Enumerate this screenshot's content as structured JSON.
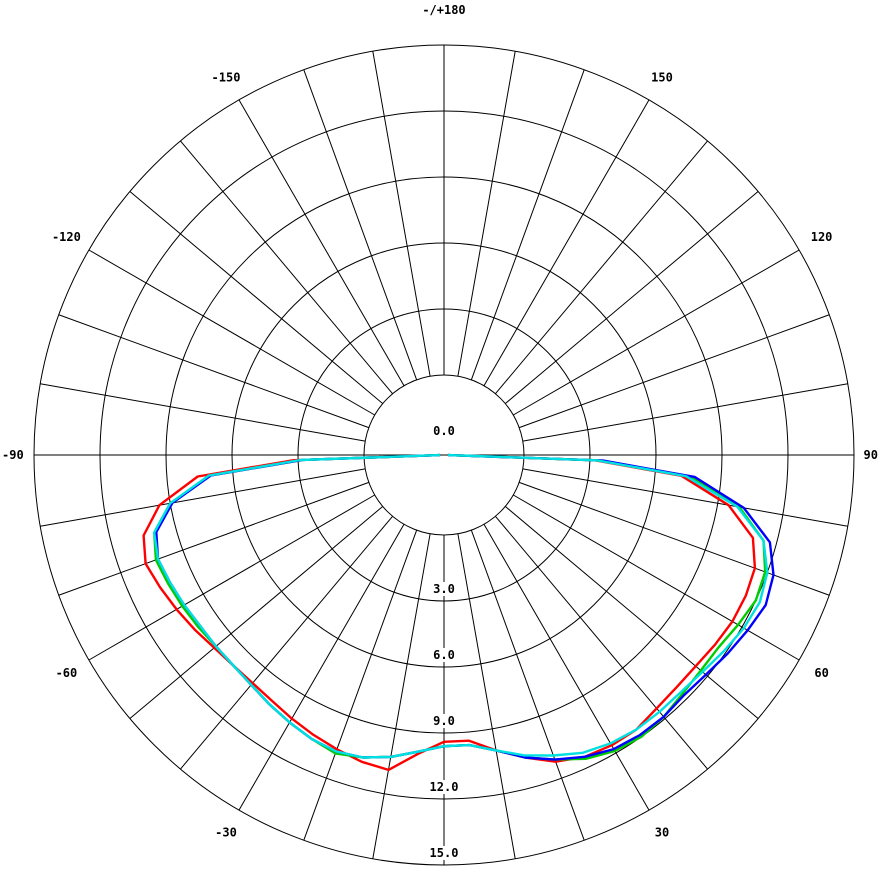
{
  "chart_data": {
    "type": "polar-line",
    "title": "",
    "angle_labels": [
      {
        "angle": 180,
        "text": "-/+180"
      },
      {
        "angle": 150,
        "text": "150"
      },
      {
        "angle": 120,
        "text": "120"
      },
      {
        "angle": 90,
        "text": "90"
      },
      {
        "angle": 60,
        "text": "60"
      },
      {
        "angle": 30,
        "text": "30"
      },
      {
        "angle": -30,
        "text": "-30"
      },
      {
        "angle": -60,
        "text": "-60"
      },
      {
        "angle": -90,
        "text": "-90"
      },
      {
        "angle": -120,
        "text": "-120"
      },
      {
        "angle": -150,
        "text": "-150"
      }
    ],
    "radial_labels": [
      "0.0",
      "3.0",
      "6.0",
      "9.0",
      "12.0",
      "15.0"
    ],
    "radial_range": [
      0,
      15
    ],
    "ring_values": [
      3,
      6,
      9,
      12,
      15
    ],
    "spoke_step_deg": 10,
    "series": [
      {
        "color": "#ff0000",
        "points": [
          [
            -88,
            3.2
          ],
          [
            -85,
            7.6
          ],
          [
            -80,
            9.5
          ],
          [
            -75,
            10.5
          ],
          [
            -70,
            10.8
          ],
          [
            -65,
            10.6
          ],
          [
            -60,
            10.4
          ],
          [
            -55,
            10.2
          ],
          [
            -50,
            10.0
          ],
          [
            -45,
            9.9
          ],
          [
            -40,
            9.9
          ],
          [
            -35,
            10.0
          ],
          [
            -30,
            10.2
          ],
          [
            -25,
            10.4
          ],
          [
            -20,
            10.6
          ],
          [
            -15,
            10.8
          ],
          [
            -10,
            10.9
          ],
          [
            -5,
            10.0
          ],
          [
            0,
            9.4
          ],
          [
            5,
            9.4
          ],
          [
            10,
            10.0
          ],
          [
            15,
            10.6
          ],
          [
            20,
            11.2
          ],
          [
            25,
            11.5
          ],
          [
            30,
            11.6
          ],
          [
            35,
            11.6
          ],
          [
            40,
            11.4
          ],
          [
            45,
            11.3
          ],
          [
            50,
            11.3
          ],
          [
            55,
            11.4
          ],
          [
            60,
            11.5
          ],
          [
            65,
            11.5
          ],
          [
            70,
            11.4
          ],
          [
            75,
            10.9
          ],
          [
            80,
            9.5
          ],
          [
            85,
            7.2
          ],
          [
            88,
            3.2
          ]
        ]
      },
      {
        "color": "#00cc00",
        "points": [
          [
            -88,
            2.8
          ],
          [
            -85,
            7.0
          ],
          [
            -80,
            9.0
          ],
          [
            -75,
            10.0
          ],
          [
            -70,
            10.3
          ],
          [
            -65,
            10.2
          ],
          [
            -60,
            10.1
          ],
          [
            -55,
            10.0
          ],
          [
            -50,
            9.9
          ],
          [
            -45,
            9.9
          ],
          [
            -40,
            10.0
          ],
          [
            -35,
            10.2
          ],
          [
            -30,
            10.4
          ],
          [
            -25,
            10.6
          ],
          [
            -20,
            10.8
          ],
          [
            -15,
            10.6
          ],
          [
            -10,
            10.3
          ],
          [
            -5,
            9.9
          ],
          [
            0,
            9.6
          ],
          [
            5,
            9.6
          ],
          [
            10,
            10.0
          ],
          [
            15,
            10.6
          ],
          [
            20,
            11.1
          ],
          [
            25,
            11.6
          ],
          [
            30,
            11.9
          ],
          [
            35,
            12.0
          ],
          [
            40,
            11.9
          ],
          [
            45,
            11.7
          ],
          [
            50,
            11.6
          ],
          [
            55,
            11.6
          ],
          [
            60,
            11.8
          ],
          [
            65,
            12.0
          ],
          [
            70,
            11.9
          ],
          [
            75,
            11.4
          ],
          [
            80,
            10.0
          ],
          [
            85,
            7.6
          ],
          [
            88,
            3.5
          ]
        ]
      },
      {
        "color": "#0000ff",
        "points": [
          [
            -88,
            2.8
          ],
          [
            -85,
            7.0
          ],
          [
            -80,
            8.9
          ],
          [
            -75,
            9.9
          ],
          [
            -70,
            10.2
          ],
          [
            -65,
            10.1
          ],
          [
            -60,
            10.0
          ],
          [
            -55,
            9.9
          ],
          [
            -50,
            9.9
          ],
          [
            -45,
            9.9
          ],
          [
            -40,
            10.0
          ],
          [
            -35,
            10.2
          ],
          [
            -30,
            10.4
          ],
          [
            -25,
            10.6
          ],
          [
            -20,
            10.7
          ],
          [
            -15,
            10.6
          ],
          [
            -10,
            10.3
          ],
          [
            -5,
            9.9
          ],
          [
            0,
            9.6
          ],
          [
            5,
            9.6
          ],
          [
            10,
            10.0
          ],
          [
            15,
            10.6
          ],
          [
            20,
            11.1
          ],
          [
            25,
            11.5
          ],
          [
            30,
            11.8
          ],
          [
            35,
            11.9
          ],
          [
            40,
            11.9
          ],
          [
            45,
            11.8
          ],
          [
            50,
            11.9
          ],
          [
            55,
            12.1
          ],
          [
            60,
            12.3
          ],
          [
            65,
            12.5
          ],
          [
            70,
            12.3
          ],
          [
            75,
            11.7
          ],
          [
            80,
            10.2
          ],
          [
            85,
            7.8
          ],
          [
            88,
            3.6
          ]
        ]
      },
      {
        "color": "#00e0e0",
        "points": [
          [
            -88,
            2.9
          ],
          [
            -85,
            7.1
          ],
          [
            -80,
            9.0
          ],
          [
            -75,
            10.0
          ],
          [
            -70,
            10.2
          ],
          [
            -65,
            10.1
          ],
          [
            -60,
            10.0
          ],
          [
            -55,
            9.9
          ],
          [
            -50,
            9.9
          ],
          [
            -45,
            9.9
          ],
          [
            -40,
            10.0
          ],
          [
            -35,
            10.2
          ],
          [
            -30,
            10.4
          ],
          [
            -25,
            10.6
          ],
          [
            -20,
            10.7
          ],
          [
            -15,
            10.6
          ],
          [
            -10,
            10.3
          ],
          [
            -5,
            9.9
          ],
          [
            0,
            9.6
          ],
          [
            5,
            9.6
          ],
          [
            10,
            10.0
          ],
          [
            15,
            10.5
          ],
          [
            20,
            10.9
          ],
          [
            25,
            11.3
          ],
          [
            30,
            11.5
          ],
          [
            35,
            11.6
          ],
          [
            40,
            11.6
          ],
          [
            45,
            11.6
          ],
          [
            50,
            11.7
          ],
          [
            55,
            11.9
          ],
          [
            60,
            12.1
          ],
          [
            65,
            12.2
          ],
          [
            70,
            12.0
          ],
          [
            75,
            11.4
          ],
          [
            80,
            9.9
          ],
          [
            85,
            7.4
          ],
          [
            88,
            3.3
          ]
        ]
      }
    ],
    "grid": true
  }
}
